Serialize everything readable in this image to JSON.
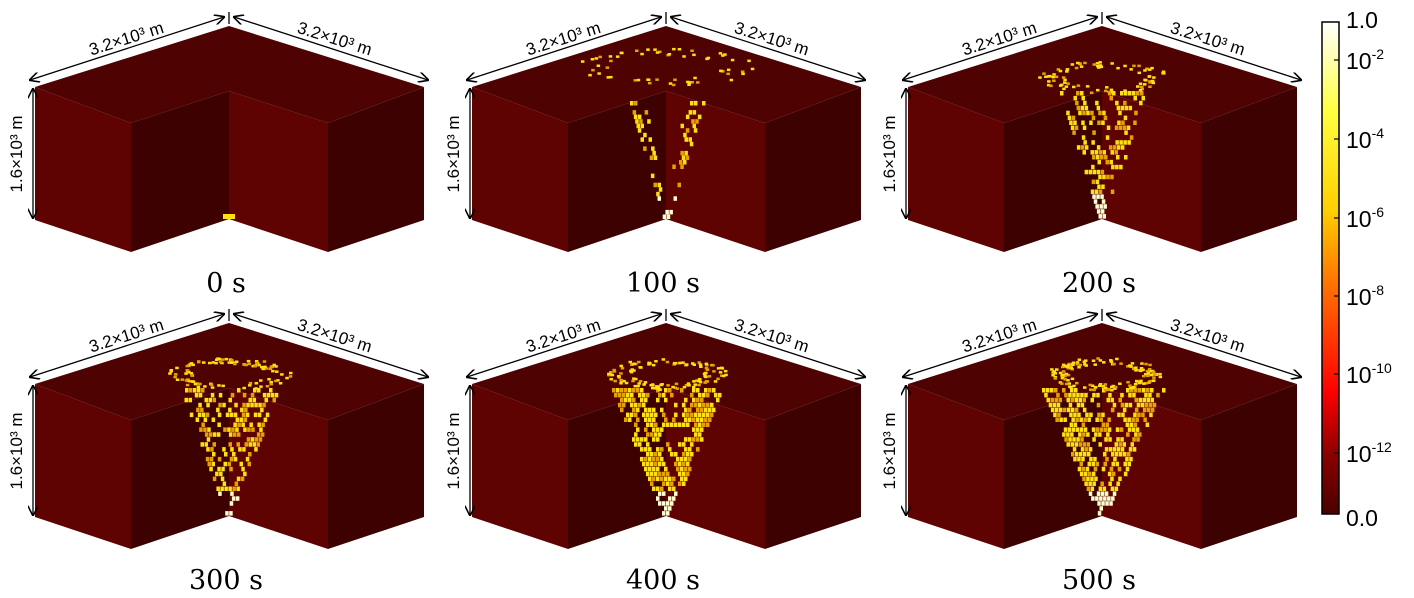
{
  "panels": [
    {
      "time_label": "0 s",
      "plume_stage": 0
    },
    {
      "time_label": "100 s",
      "plume_stage": 1
    },
    {
      "time_label": "200 s",
      "plume_stage": 2
    },
    {
      "time_label": "300 s",
      "plume_stage": 3
    },
    {
      "time_label": "400 s",
      "plume_stage": 4
    },
    {
      "time_label": "500 s",
      "plume_stage": 5
    }
  ],
  "dimensions": {
    "width_label": "3.2×10³ m",
    "height_label": "1.6×10³ m"
  },
  "colorbar": {
    "top_label": "1.0",
    "bottom_label": "0.0",
    "tick_labels": [
      {
        "base": "10",
        "exp": "-2"
      },
      {
        "base": "10",
        "exp": "-4"
      },
      {
        "base": "10",
        "exp": "-6"
      },
      {
        "base": "10",
        "exp": "-8"
      },
      {
        "base": "10",
        "exp": "-10"
      },
      {
        "base": "10",
        "exp": "-12"
      }
    ],
    "colors": [
      "#4a0000",
      "#8b0000",
      "#ff0000",
      "#ff7a00",
      "#ffd000",
      "#ffff40",
      "#ffffff"
    ]
  },
  "colors": {
    "top_face": "#4f0202",
    "left_face": "#5e0202",
    "right_face": "#3d0101",
    "plume_core": "#ffffd0",
    "plume_mid": "#ffe010",
    "plume_edge": "#e8a000"
  }
}
